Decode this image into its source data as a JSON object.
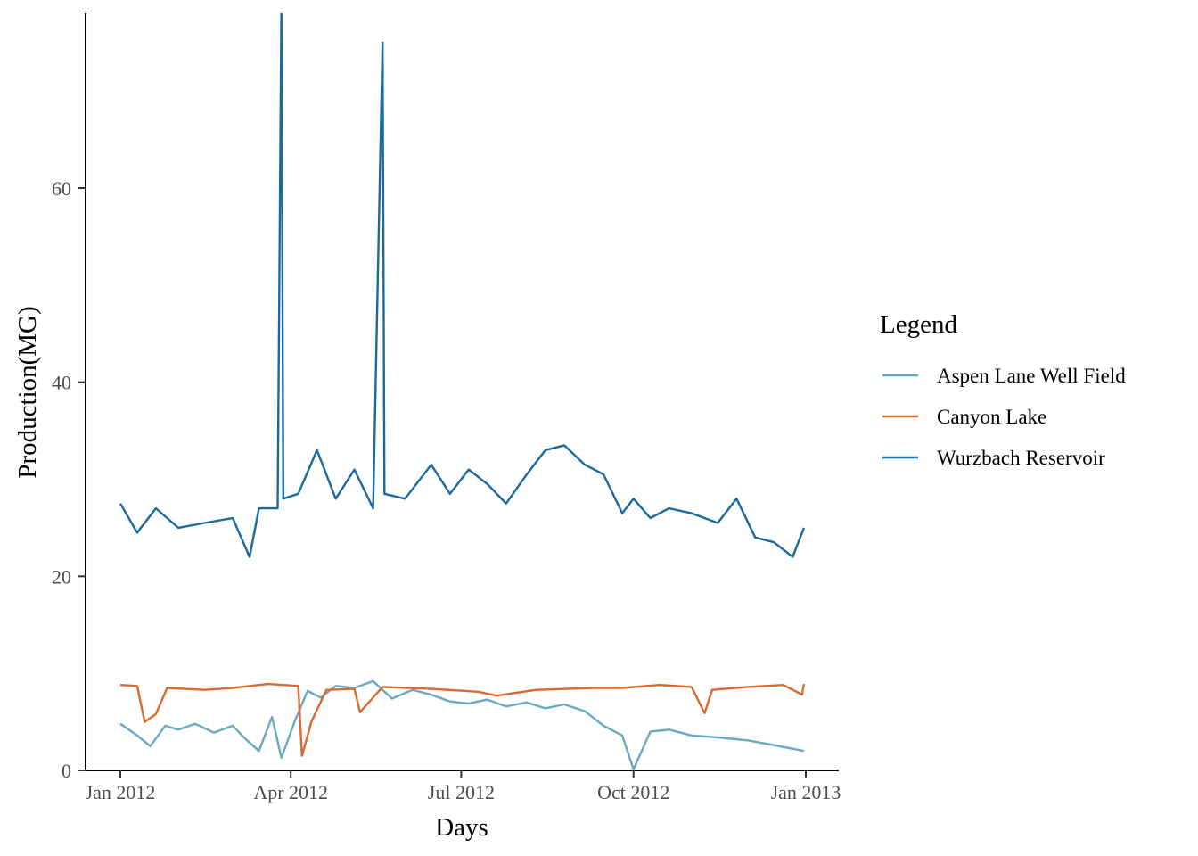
{
  "chart_data": {
    "type": "line",
    "title": "",
    "xlabel": "Days",
    "ylabel": "Production(MG)",
    "x_tick_labels": [
      "Jan 2012",
      "Apr 2012",
      "Jul 2012",
      "Oct 2012",
      "Jan 2013"
    ],
    "y_ticks": [
      0,
      20,
      40,
      60
    ],
    "y_tick_labels": [
      "0",
      "20",
      "40",
      "60"
    ],
    "ylim": [
      0,
      78
    ],
    "xlim": [
      "2012-01-01",
      "2013-01-01"
    ],
    "grid": false,
    "legend": {
      "title": "Legend",
      "position": "right",
      "entries": [
        "Aspen Lane Well Field",
        "Canyon Lake",
        "Wurzbach Reservoir"
      ]
    },
    "series": [
      {
        "name": "Aspen Lane Well Field",
        "color": "#6aaac0",
        "points": [
          [
            "2012-01-01",
            4.8
          ],
          [
            "2012-01-10",
            3.6
          ],
          [
            "2012-01-17",
            2.5
          ],
          [
            "2012-01-25",
            4.6
          ],
          [
            "2012-02-01",
            4.2
          ],
          [
            "2012-02-10",
            4.8
          ],
          [
            "2012-02-20",
            3.9
          ],
          [
            "2012-03-01",
            4.6
          ],
          [
            "2012-03-08",
            3.2
          ],
          [
            "2012-03-15",
            2.0
          ],
          [
            "2012-03-22",
            5.5
          ],
          [
            "2012-03-27",
            1.3
          ],
          [
            "2012-04-03",
            5.0
          ],
          [
            "2012-04-10",
            8.2
          ],
          [
            "2012-04-17",
            7.5
          ],
          [
            "2012-04-25",
            8.7
          ],
          [
            "2012-05-05",
            8.5
          ],
          [
            "2012-05-15",
            9.2
          ],
          [
            "2012-05-25",
            7.4
          ],
          [
            "2012-06-05",
            8.3
          ],
          [
            "2012-06-15",
            7.8
          ],
          [
            "2012-06-25",
            7.1
          ],
          [
            "2012-07-05",
            6.9
          ],
          [
            "2012-07-15",
            7.3
          ],
          [
            "2012-07-25",
            6.6
          ],
          [
            "2012-08-05",
            7.0
          ],
          [
            "2012-08-15",
            6.4
          ],
          [
            "2012-08-25",
            6.8
          ],
          [
            "2012-09-05",
            6.1
          ],
          [
            "2012-09-15",
            4.6
          ],
          [
            "2012-09-25",
            3.6
          ],
          [
            "2012-10-01",
            0.1
          ],
          [
            "2012-10-10",
            4.0
          ],
          [
            "2012-10-20",
            4.2
          ],
          [
            "2012-11-01",
            3.6
          ],
          [
            "2012-11-15",
            3.4
          ],
          [
            "2012-12-01",
            3.1
          ],
          [
            "2012-12-15",
            2.6
          ],
          [
            "2012-12-31",
            2.0
          ]
        ]
      },
      {
        "name": "Canyon Lake",
        "color": "#d56c32",
        "points": [
          [
            "2012-01-01",
            8.8
          ],
          [
            "2012-01-10",
            8.7
          ],
          [
            "2012-01-14",
            5.0
          ],
          [
            "2012-01-20",
            5.8
          ],
          [
            "2012-01-26",
            8.5
          ],
          [
            "2012-02-15",
            8.3
          ],
          [
            "2012-03-01",
            8.5
          ],
          [
            "2012-03-20",
            8.9
          ],
          [
            "2012-04-05",
            8.7
          ],
          [
            "2012-04-07",
            1.5
          ],
          [
            "2012-04-12",
            5.0
          ],
          [
            "2012-04-20",
            8.3
          ],
          [
            "2012-05-05",
            8.4
          ],
          [
            "2012-05-08",
            6.0
          ],
          [
            "2012-05-20",
            8.6
          ],
          [
            "2012-06-15",
            8.4
          ],
          [
            "2012-07-10",
            8.1
          ],
          [
            "2012-07-20",
            7.7
          ],
          [
            "2012-08-10",
            8.3
          ],
          [
            "2012-09-10",
            8.5
          ],
          [
            "2012-09-25",
            8.5
          ],
          [
            "2012-10-15",
            8.8
          ],
          [
            "2012-11-01",
            8.6
          ],
          [
            "2012-11-08",
            5.9
          ],
          [
            "2012-11-12",
            8.3
          ],
          [
            "2012-12-01",
            8.6
          ],
          [
            "2012-12-20",
            8.8
          ],
          [
            "2012-12-30",
            7.8
          ],
          [
            "2012-12-31",
            8.9
          ]
        ]
      },
      {
        "name": "Wurzbach Reservoir",
        "color": "#1a6aa0",
        "points": [
          [
            "2012-01-01",
            27.5
          ],
          [
            "2012-01-10",
            24.5
          ],
          [
            "2012-01-20",
            27.0
          ],
          [
            "2012-02-01",
            25.0
          ],
          [
            "2012-02-15",
            25.5
          ],
          [
            "2012-03-01",
            26.0
          ],
          [
            "2012-03-10",
            22.0
          ],
          [
            "2012-03-15",
            27.0
          ],
          [
            "2012-03-25",
            27.0
          ],
          [
            "2012-03-27",
            79.0
          ],
          [
            "2012-03-28",
            28.0
          ],
          [
            "2012-04-05",
            28.5
          ],
          [
            "2012-04-15",
            33.0
          ],
          [
            "2012-04-25",
            28.0
          ],
          [
            "2012-05-05",
            31.0
          ],
          [
            "2012-05-15",
            27.0
          ],
          [
            "2012-05-20",
            75.0
          ],
          [
            "2012-05-21",
            28.5
          ],
          [
            "2012-06-01",
            28.0
          ],
          [
            "2012-06-15",
            31.5
          ],
          [
            "2012-06-25",
            28.5
          ],
          [
            "2012-07-05",
            31.0
          ],
          [
            "2012-07-15",
            29.5
          ],
          [
            "2012-07-25",
            27.5
          ],
          [
            "2012-08-05",
            30.5
          ],
          [
            "2012-08-15",
            33.0
          ],
          [
            "2012-08-25",
            33.5
          ],
          [
            "2012-09-05",
            31.5
          ],
          [
            "2012-09-15",
            30.5
          ],
          [
            "2012-09-25",
            26.5
          ],
          [
            "2012-10-01",
            28.0
          ],
          [
            "2012-10-10",
            26.0
          ],
          [
            "2012-10-20",
            27.0
          ],
          [
            "2012-11-01",
            26.5
          ],
          [
            "2012-11-15",
            25.5
          ],
          [
            "2012-11-25",
            28.0
          ],
          [
            "2012-12-05",
            24.0
          ],
          [
            "2012-12-15",
            23.5
          ],
          [
            "2012-12-25",
            22.0
          ],
          [
            "2012-12-31",
            25.0
          ]
        ]
      }
    ]
  }
}
